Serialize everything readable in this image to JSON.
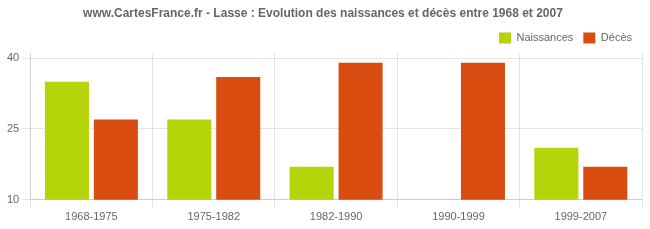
{
  "chart_data": {
    "type": "bar",
    "title": "www.CartesFrance.fr - Lasse : Evolution des naissances et décès entre 1968 et 2007",
    "categories": [
      "1968-1975",
      "1975-1982",
      "1982-1990",
      "1990-1999",
      "1999-2007"
    ],
    "series": [
      {
        "name": "Naissances",
        "color": "#b5d40a",
        "values": [
          35,
          27,
          17,
          10,
          21
        ]
      },
      {
        "name": "Décès",
        "color": "#d94e10",
        "values": [
          27,
          36,
          39,
          39,
          17
        ]
      }
    ],
    "ylim": [
      10,
      41
    ],
    "yticks": [
      10,
      25,
      40
    ],
    "grid": true,
    "legend": "upper right"
  }
}
